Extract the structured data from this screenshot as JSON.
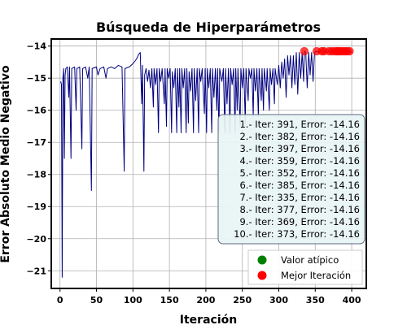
{
  "chart_data": {
    "type": "line",
    "title": "Búsqueda de Hiperparámetros",
    "xlabel": "Iteración",
    "ylabel": "Error Absoluto Medio Negativo",
    "xlim": [
      -12,
      420
    ],
    "ylim": [
      -21.55,
      -13.78
    ],
    "xticks": [
      "0",
      "50",
      "100",
      "150",
      "200",
      "250",
      "300",
      "350",
      "400"
    ],
    "yticks": [
      "−14",
      "−15",
      "−16",
      "−17",
      "−18",
      "−19",
      "−20",
      "−21"
    ],
    "grid": true,
    "series": [
      {
        "style": "line",
        "color": "#000080",
        "points": [
          [
            1,
            -15.1
          ],
          [
            2,
            -15.2
          ],
          [
            3,
            -21.2
          ],
          [
            4,
            -15.0
          ],
          [
            5,
            -14.7
          ],
          [
            6,
            -17.5
          ],
          [
            7,
            -14.9
          ],
          [
            8,
            -14.7
          ],
          [
            10,
            -14.65
          ],
          [
            12,
            -15.6
          ],
          [
            13,
            -14.65
          ],
          [
            15,
            -17.5
          ],
          [
            16,
            -14.7
          ],
          [
            20,
            -14.65
          ],
          [
            22,
            -16.0
          ],
          [
            23,
            -14.7
          ],
          [
            27,
            -14.65
          ],
          [
            30,
            -17.2
          ],
          [
            31,
            -14.7
          ],
          [
            35,
            -14.65
          ],
          [
            38,
            -15.0
          ],
          [
            40,
            -14.65
          ],
          [
            43,
            -18.5
          ],
          [
            44,
            -14.7
          ],
          [
            50,
            -14.65
          ],
          [
            52,
            -14.9
          ],
          [
            55,
            -14.7
          ],
          [
            60,
            -14.65
          ],
          [
            63,
            -15.0
          ],
          [
            65,
            -14.7
          ],
          [
            70,
            -14.65
          ],
          [
            75,
            -14.7
          ],
          [
            80,
            -14.6
          ],
          [
            85,
            -14.65
          ],
          [
            88,
            -17.9
          ],
          [
            89,
            -14.7
          ],
          [
            95,
            -14.65
          ],
          [
            100,
            -14.55
          ],
          [
            105,
            -14.4
          ],
          [
            108,
            -14.25
          ],
          [
            110,
            -14.2
          ],
          [
            112,
            -15.8
          ],
          [
            113,
            -14.6
          ],
          [
            115,
            -17.9
          ],
          [
            116,
            -14.9
          ],
          [
            118,
            -14.7
          ],
          [
            120,
            -15.1
          ],
          [
            122,
            -14.75
          ],
          [
            124,
            -15.3
          ],
          [
            126,
            -14.7
          ],
          [
            128,
            -15.9
          ],
          [
            129,
            -14.7
          ],
          [
            131,
            -15.2
          ],
          [
            133,
            -14.7
          ],
          [
            135,
            -16.7
          ],
          [
            136,
            -14.7
          ],
          [
            138,
            -15.1
          ],
          [
            140,
            -14.7
          ],
          [
            143,
            -15.8
          ],
          [
            144,
            -14.7
          ],
          [
            146,
            -16.5
          ],
          [
            147,
            -14.7
          ],
          [
            149,
            -15.0
          ],
          [
            151,
            -14.7
          ],
          [
            153,
            -16.7
          ],
          [
            154,
            -14.8
          ],
          [
            156,
            -15.3
          ],
          [
            158,
            -14.7
          ],
          [
            160,
            -16.7
          ],
          [
            161,
            -14.7
          ],
          [
            163,
            -15.9
          ],
          [
            164,
            -14.7
          ],
          [
            166,
            -16.7
          ],
          [
            167,
            -14.7
          ],
          [
            169,
            -15.3
          ],
          [
            171,
            -14.7
          ],
          [
            173,
            -16.7
          ],
          [
            174,
            -14.7
          ],
          [
            176,
            -16.4
          ],
          [
            177,
            -14.8
          ],
          [
            179,
            -15.4
          ],
          [
            181,
            -14.7
          ],
          [
            183,
            -16.7
          ],
          [
            184,
            -14.7
          ],
          [
            186,
            -15.7
          ],
          [
            188,
            -14.7
          ],
          [
            190,
            -16.7
          ],
          [
            191,
            -14.7
          ],
          [
            193,
            -15.1
          ],
          [
            195,
            -14.7
          ],
          [
            198,
            -16.1
          ],
          [
            199,
            -14.7
          ],
          [
            201,
            -16.7
          ],
          [
            202,
            -14.7
          ],
          [
            204,
            -15.3
          ],
          [
            206,
            -14.7
          ],
          [
            208,
            -16.7
          ],
          [
            209,
            -14.7
          ],
          [
            211,
            -15.6
          ],
          [
            213,
            -14.7
          ],
          [
            215,
            -16.0
          ],
          [
            216,
            -14.7
          ],
          [
            218,
            -16.7
          ],
          [
            219,
            -14.7
          ],
          [
            222,
            -15.1
          ],
          [
            224,
            -14.7
          ],
          [
            226,
            -16.7
          ],
          [
            227,
            -14.7
          ],
          [
            229,
            -15.8
          ],
          [
            231,
            -14.7
          ],
          [
            233,
            -16.7
          ],
          [
            234,
            -14.7
          ],
          [
            236,
            -15.2
          ],
          [
            238,
            -14.7
          ],
          [
            240,
            -16.7
          ],
          [
            241,
            -14.7
          ],
          [
            243,
            -16.0
          ],
          [
            244,
            -14.7
          ],
          [
            247,
            -16.5
          ],
          [
            248,
            -14.7
          ],
          [
            250,
            -15.3
          ],
          [
            252,
            -14.7
          ],
          [
            254,
            -16.4
          ],
          [
            255,
            -14.7
          ],
          [
            258,
            -15.7
          ],
          [
            259,
            -14.7
          ],
          [
            261,
            -15.0
          ],
          [
            263,
            -14.7
          ],
          [
            265,
            -16.2
          ],
          [
            266,
            -14.7
          ],
          [
            268,
            -15.4
          ],
          [
            270,
            -14.7
          ],
          [
            272,
            -16.2
          ],
          [
            273,
            -14.7
          ],
          [
            276,
            -15.7
          ],
          [
            277,
            -14.7
          ],
          [
            279,
            -16.0
          ],
          [
            280,
            -14.7
          ],
          [
            283,
            -15.4
          ],
          [
            284,
            -14.7
          ],
          [
            287,
            -16.0
          ],
          [
            288,
            -14.7
          ],
          [
            290,
            -15.2
          ],
          [
            292,
            -14.7
          ],
          [
            294,
            -15.8
          ],
          [
            295,
            -14.7
          ],
          [
            298,
            -15.2
          ],
          [
            300,
            -14.6
          ],
          [
            302,
            -15.3
          ],
          [
            304,
            -14.5
          ],
          [
            306,
            -15.0
          ],
          [
            308,
            -14.4
          ],
          [
            310,
            -15.6
          ],
          [
            312,
            -14.3
          ],
          [
            314,
            -14.9
          ],
          [
            316,
            -14.3
          ],
          [
            318,
            -15.3
          ],
          [
            320,
            -14.3
          ],
          [
            322,
            -15.2
          ],
          [
            324,
            -14.2
          ],
          [
            326,
            -15.5
          ],
          [
            328,
            -14.2
          ],
          [
            330,
            -15.0
          ],
          [
            332,
            -14.2
          ],
          [
            334,
            -15.1
          ],
          [
            335,
            -14.16
          ],
          [
            337,
            -14.2
          ],
          [
            339,
            -15.3
          ],
          [
            341,
            -14.2
          ],
          [
            343,
            -14.9
          ],
          [
            345,
            -14.2
          ],
          [
            347,
            -15.1
          ],
          [
            349,
            -14.2
          ],
          [
            352,
            -14.16
          ],
          [
            354,
            -14.2
          ],
          [
            356,
            -14.16
          ],
          [
            359,
            -14.16
          ],
          [
            361,
            -14.2
          ],
          [
            363,
            -14.16
          ],
          [
            366,
            -14.2
          ],
          [
            369,
            -14.16
          ],
          [
            372,
            -14.2
          ],
          [
            373,
            -14.16
          ],
          [
            375,
            -14.2
          ],
          [
            377,
            -14.16
          ],
          [
            380,
            -14.2
          ],
          [
            382,
            -14.16
          ],
          [
            385,
            -14.16
          ],
          [
            388,
            -14.2
          ],
          [
            391,
            -14.16
          ],
          [
            394,
            -14.2
          ],
          [
            397,
            -14.16
          ],
          [
            400,
            -14.2
          ]
        ]
      },
      {
        "style": "scatter",
        "name": "Mejor Iteración",
        "color": "#ff0000",
        "points": [
          [
            335,
            -14.16
          ],
          [
            352,
            -14.16
          ],
          [
            359,
            -14.16
          ],
          [
            369,
            -14.16
          ],
          [
            373,
            -14.16
          ],
          [
            377,
            -14.16
          ],
          [
            382,
            -14.16
          ],
          [
            385,
            -14.16
          ],
          [
            391,
            -14.16
          ],
          [
            397,
            -14.16
          ],
          [
            362,
            -14.16
          ],
          [
            380,
            -14.16
          ],
          [
            388,
            -14.16
          ],
          [
            394,
            -14.16
          ]
        ]
      }
    ],
    "annotation": {
      "lines": [
        "1.- Iter: 391, Error: -14.16",
        "2.- Iter: 382, Error: -14.16",
        "3.- Iter: 397, Error: -14.16",
        "4.- Iter: 359, Error: -14.16",
        "5.- Iter: 352, Error: -14.16",
        "6.- Iter: 385, Error: -14.16",
        "7.- Iter: 335, Error: -14.16",
        "8.- Iter: 377, Error: -14.16",
        "9.- Iter: 369, Error: -14.16",
        "10.- Iter: 373, Error: -14.16"
      ],
      "background": "#e8f4f4"
    },
    "legend": {
      "placement": "bottom-right",
      "entries": [
        {
          "label": "Valor atípico",
          "color": "#008000"
        },
        {
          "label": "Mejor Iteración",
          "color": "#ff0000"
        }
      ]
    }
  }
}
